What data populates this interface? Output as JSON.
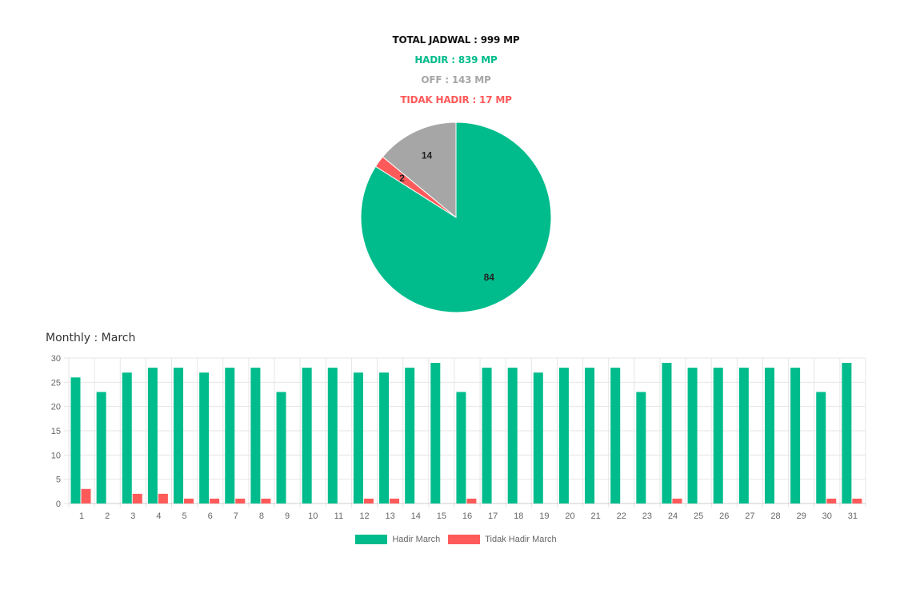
{
  "summary": {
    "total": "TOTAL JADWAL : 999 MP",
    "hadir": "HADIR : 839 MP",
    "off": "OFF : 143 MP",
    "tidak_hadir": "TIDAK HADIR : 17 MP"
  },
  "colors": {
    "hadir": "#00bc8c",
    "off": "#a6a6a6",
    "tidak_hadir": "#ff5a5a",
    "grid": "#e6e6e6",
    "tick": "#666666"
  },
  "monthly_label": "Monthly : March",
  "chart_data": [
    {
      "type": "pie",
      "slices": [
        {
          "label": "Hadir",
          "value": 84,
          "color": "#00bc8c"
        },
        {
          "label": "Tidak Hadir",
          "value": 2,
          "color": "#ff5a5a"
        },
        {
          "label": "Off",
          "value": 14,
          "color": "#a6a6a6"
        }
      ]
    },
    {
      "type": "bar",
      "title": "Monthly : March",
      "categories": [
        "1",
        "2",
        "3",
        "4",
        "5",
        "6",
        "7",
        "8",
        "9",
        "10",
        "11",
        "12",
        "13",
        "14",
        "15",
        "16",
        "17",
        "18",
        "19",
        "20",
        "21",
        "22",
        "23",
        "24",
        "25",
        "26",
        "27",
        "28",
        "29",
        "30",
        "31"
      ],
      "series": [
        {
          "name": "Hadir March",
          "color": "#00bc8c",
          "values": [
            26,
            23,
            27,
            28,
            28,
            27,
            28,
            28,
            23,
            28,
            28,
            27,
            27,
            28,
            29,
            23,
            28,
            28,
            27,
            28,
            28,
            28,
            23,
            29,
            28,
            28,
            28,
            28,
            28,
            23,
            29
          ]
        },
        {
          "name": "Tidak Hadir March",
          "color": "#ff5a5a",
          "values": [
            3,
            0,
            2,
            2,
            1,
            1,
            1,
            1,
            0,
            0,
            0,
            1,
            1,
            0,
            0,
            1,
            0,
            0,
            0,
            0,
            0,
            0,
            0,
            1,
            0,
            0,
            0,
            0,
            0,
            1,
            1
          ]
        }
      ],
      "ylim": [
        0,
        30
      ],
      "yticks": [
        0,
        5,
        10,
        15,
        20,
        25,
        30
      ],
      "grid": true,
      "legend": "bottom"
    }
  ]
}
